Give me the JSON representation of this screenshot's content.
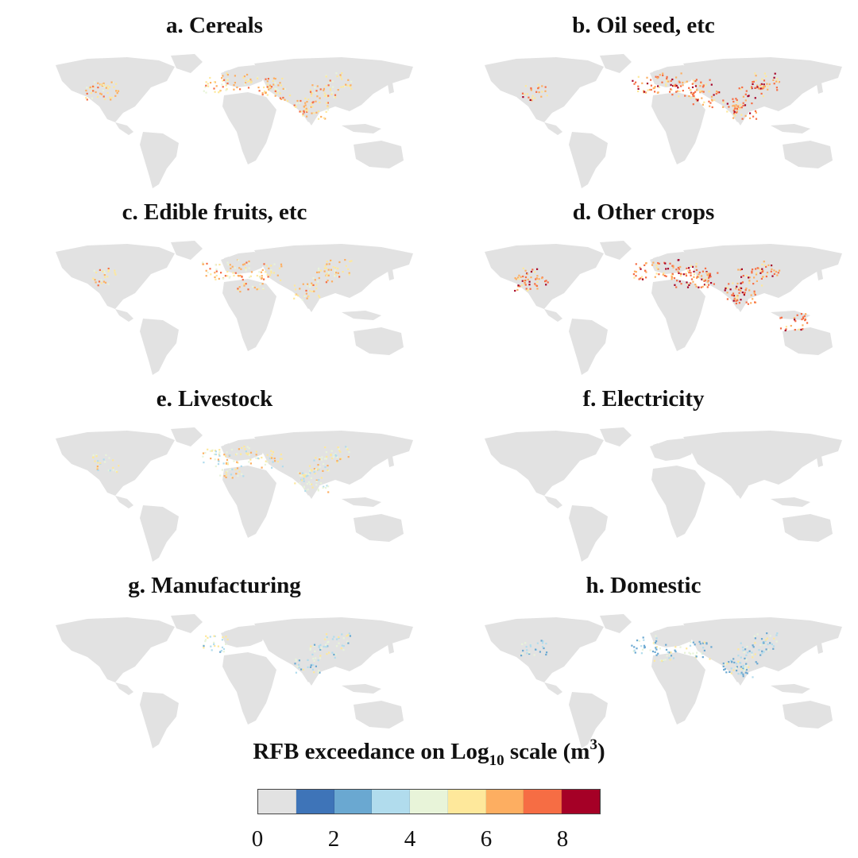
{
  "panels": [
    {
      "id": "a",
      "title": "a. Cereals",
      "hotspots": [
        [
          0.74,
          0.28
        ],
        [
          0.7,
          0.38
        ],
        [
          0.72,
          0.42
        ],
        [
          0.46,
          0.24
        ],
        [
          0.52,
          0.22
        ],
        [
          0.6,
          0.25
        ],
        [
          0.78,
          0.22
        ],
        [
          0.17,
          0.28
        ],
        [
          0.15,
          0.3
        ],
        [
          0.62,
          0.3
        ]
      ],
      "intensity": 7
    },
    {
      "id": "b",
      "title": "b. Oil seed, etc",
      "hotspots": [
        [
          0.74,
          0.28
        ],
        [
          0.7,
          0.38
        ],
        [
          0.72,
          0.42
        ],
        [
          0.46,
          0.24
        ],
        [
          0.52,
          0.22
        ],
        [
          0.6,
          0.25
        ],
        [
          0.78,
          0.22
        ],
        [
          0.17,
          0.3
        ],
        [
          0.62,
          0.34
        ],
        [
          0.56,
          0.28
        ]
      ],
      "intensity": 8
    },
    {
      "id": "c",
      "title": "c. Edible fruits, etc",
      "hotspots": [
        [
          0.74,
          0.28
        ],
        [
          0.7,
          0.38
        ],
        [
          0.46,
          0.24
        ],
        [
          0.52,
          0.22
        ],
        [
          0.6,
          0.25
        ],
        [
          0.78,
          0.22
        ],
        [
          0.17,
          0.28
        ],
        [
          0.55,
          0.33
        ]
      ],
      "intensity": 7
    },
    {
      "id": "d",
      "title": "d. Other crops",
      "hotspots": [
        [
          0.74,
          0.28
        ],
        [
          0.7,
          0.38
        ],
        [
          0.72,
          0.42
        ],
        [
          0.46,
          0.24
        ],
        [
          0.52,
          0.22
        ],
        [
          0.6,
          0.25
        ],
        [
          0.78,
          0.22
        ],
        [
          0.17,
          0.28
        ],
        [
          0.15,
          0.32
        ],
        [
          0.62,
          0.3
        ],
        [
          0.56,
          0.3
        ],
        [
          0.85,
          0.6
        ]
      ],
      "intensity": 8
    },
    {
      "id": "e",
      "title": "e. Livestock",
      "hotspots": [
        [
          0.74,
          0.28
        ],
        [
          0.7,
          0.38
        ],
        [
          0.72,
          0.42
        ],
        [
          0.46,
          0.24
        ],
        [
          0.52,
          0.22
        ],
        [
          0.6,
          0.25
        ],
        [
          0.78,
          0.22
        ],
        [
          0.17,
          0.28
        ],
        [
          0.5,
          0.32
        ]
      ],
      "intensity": 6
    },
    {
      "id": "f",
      "title": "f. Electricity",
      "hotspots": [],
      "intensity": 0
    },
    {
      "id": "g",
      "title": "g. Manufacturing",
      "hotspots": [
        [
          0.74,
          0.28
        ],
        [
          0.7,
          0.38
        ],
        [
          0.46,
          0.24
        ],
        [
          0.78,
          0.22
        ]
      ],
      "intensity": 5
    },
    {
      "id": "h",
      "title": "h. Domestic",
      "hotspots": [
        [
          0.74,
          0.28
        ],
        [
          0.7,
          0.4
        ],
        [
          0.72,
          0.42
        ],
        [
          0.46,
          0.24
        ],
        [
          0.52,
          0.3
        ],
        [
          0.6,
          0.28
        ],
        [
          0.78,
          0.22
        ],
        [
          0.17,
          0.26
        ]
      ],
      "intensity": 5
    }
  ],
  "legend": {
    "title_main": "RFB exceedance on Log",
    "title_sub": "10",
    "title_after": " scale (m",
    "title_sup": "3",
    "title_end": ")",
    "colors": [
      "#e2e2e2",
      "#3e74b8",
      "#6aa8d1",
      "#b1dced",
      "#e8f4d9",
      "#fee89b",
      "#fdae61",
      "#f66d44",
      "#a50026"
    ],
    "ticks": [
      "0",
      "2",
      "4",
      "6",
      "8"
    ]
  }
}
